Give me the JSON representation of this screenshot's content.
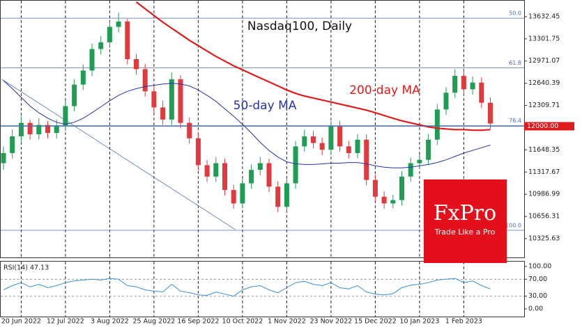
{
  "chart_data": [
    {
      "type": "candlestick",
      "title": "Nasdaq100, Daily",
      "categories": [
        null,
        null,
        "20 Jun 2022",
        null,
        null,
        null,
        null,
        "12 Jul 2022",
        null,
        null,
        null,
        null,
        "3 Aug 2022",
        null,
        null,
        null,
        null,
        "25 Aug 2022",
        null,
        null,
        null,
        null,
        "16 Sep 2022",
        null,
        null,
        null,
        null,
        "10 Oct 2022",
        null,
        null,
        null,
        null,
        "1 Nov 2022",
        null,
        null,
        null,
        null,
        "23 Nov 2022",
        null,
        null,
        null,
        null,
        "15 Dec 2022",
        null,
        null,
        null,
        null,
        "10 Jan 2023",
        null,
        null,
        null,
        null,
        "1 Feb 2023",
        null,
        null,
        null
      ],
      "open": [
        11450,
        11600,
        11850,
        12050,
        11880,
        12020,
        11900,
        12010,
        12300,
        12620,
        12830,
        13150,
        13250,
        13480,
        13560,
        13000,
        12850,
        12520,
        12280,
        12100,
        12700,
        12050,
        11820,
        11420,
        11250,
        11450,
        11050,
        10850,
        11150,
        11350,
        11450,
        11100,
        10800,
        11150,
        11700,
        11850,
        11750,
        11650,
        12000,
        11700,
        11600,
        11800,
        11200,
        10950,
        10850,
        10900,
        11250,
        11450,
        11500,
        11800,
        12250,
        12500,
        12750,
        12550,
        12650,
        12350
      ],
      "close": [
        11600,
        11850,
        12050,
        11880,
        12020,
        11900,
        12010,
        12300,
        12620,
        12830,
        13150,
        13250,
        13480,
        13560,
        13000,
        12850,
        12520,
        12280,
        12100,
        12700,
        12050,
        11820,
        11420,
        11250,
        11450,
        11050,
        10850,
        11150,
        11350,
        11450,
        11100,
        10800,
        11150,
        11700,
        11850,
        11750,
        11650,
        12000,
        11700,
        11600,
        11800,
        11200,
        10950,
        10850,
        10900,
        11250,
        11450,
        11500,
        11800,
        12250,
        12500,
        12750,
        12550,
        12650,
        12350,
        12040
      ],
      "high": [
        11700,
        11950,
        12150,
        12100,
        12120,
        12080,
        12100,
        12380,
        12700,
        12920,
        13230,
        13340,
        13560,
        13690,
        13600,
        13080,
        12930,
        12600,
        12380,
        12800,
        12760,
        12130,
        11900,
        11500,
        11540,
        11520,
        11130,
        11230,
        11430,
        11540,
        11520,
        11180,
        11230,
        11780,
        11950,
        11930,
        11830,
        12080,
        12080,
        11780,
        11880,
        11880,
        11280,
        11030,
        10980,
        11330,
        11530,
        11580,
        11880,
        12330,
        12580,
        12850,
        12830,
        12740,
        12730,
        12430
      ],
      "low": [
        11350,
        11520,
        11770,
        11800,
        11800,
        11820,
        11820,
        11930,
        12220,
        12540,
        12750,
        13070,
        13170,
        13400,
        12920,
        12770,
        12440,
        12200,
        12020,
        12020,
        11970,
        11740,
        11340,
        11170,
        11170,
        10970,
        10770,
        10780,
        11070,
        11270,
        11020,
        10720,
        10720,
        11070,
        11620,
        11670,
        11570,
        11570,
        11620,
        11520,
        11520,
        11120,
        10870,
        10770,
        10780,
        10820,
        11170,
        11370,
        11420,
        11720,
        12170,
        12420,
        12470,
        12470,
        12270,
        11960
      ],
      "up_color": "#1f9d55",
      "down_color": "#e0393e",
      "ylim": [
        10046,
        13870
      ],
      "yticks": [
        13632.45,
        13301.75,
        12971.07,
        12640.39,
        12309.71,
        11648.35,
        11317.67,
        10986.99,
        10656.31,
        10325.63
      ],
      "series": [
        {
          "name": "50-day MA",
          "color": "#2432a8",
          "values": [
            12680,
            12560,
            12430,
            12300,
            12200,
            12120,
            12060,
            12030,
            12060,
            12120,
            12200,
            12290,
            12380,
            12460,
            12520,
            12560,
            12590,
            12610,
            12630,
            12640,
            12630,
            12600,
            12540,
            12460,
            12370,
            12260,
            12150,
            12030,
            11900,
            11760,
            11640,
            11540,
            11470,
            11440,
            11430,
            11430,
            11440,
            11450,
            11450,
            11460,
            11460,
            11440,
            11410,
            11390,
            11380,
            11380,
            11390,
            11410,
            11430,
            11460,
            11500,
            11550,
            11600,
            11640,
            11680,
            11720
          ]
        },
        {
          "name": "200-day MA",
          "color": "#e01b1b",
          "values": [
            null,
            null,
            null,
            null,
            null,
            null,
            null,
            null,
            null,
            null,
            null,
            null,
            null,
            null,
            null,
            13850,
            13750,
            13650,
            13550,
            13460,
            13370,
            13280,
            13200,
            13120,
            13040,
            12970,
            12900,
            12840,
            12780,
            12720,
            12660,
            12600,
            12540,
            12490,
            12450,
            12420,
            12390,
            12360,
            12330,
            12300,
            12270,
            12240,
            12200,
            12160,
            12120,
            12080,
            12050,
            12020,
            11990,
            11970,
            11960,
            11950,
            11950,
            11940,
            11940,
            11950
          ]
        }
      ],
      "fib_levels": [
        {
          "level": "50.0",
          "price": 13610
        },
        {
          "level": "61.8",
          "price": 12870
        },
        {
          "level": "76.4",
          "price": 12010
        },
        {
          "level": "100.0",
          "price": 10450
        }
      ],
      "level": {
        "label": "12000.00",
        "price": 12000,
        "color": "#e01b1b"
      },
      "trendline": {
        "from": [
          -0.2,
          12700
        ],
        "to": [
          26.2,
          10460
        ],
        "color": "#4a6fb5"
      },
      "grid": true
    },
    {
      "type": "line",
      "title": "RSI(14) 47.13",
      "color": "#3a8fd6",
      "values": [
        45,
        55,
        62,
        52,
        58,
        50,
        55,
        62,
        66,
        68,
        70,
        68,
        72,
        70,
        55,
        52,
        45,
        42,
        40,
        58,
        42,
        38,
        33,
        32,
        40,
        35,
        30,
        45,
        52,
        55,
        45,
        38,
        50,
        62,
        65,
        58,
        55,
        62,
        50,
        47,
        55,
        40,
        35,
        33,
        36,
        50,
        56,
        58,
        62,
        68,
        70,
        72,
        62,
        66,
        55,
        47.13
      ],
      "ylim": [
        -18,
        111.5
      ],
      "yticks": [
        {
          "value": 100,
          "label": "100.00"
        },
        {
          "value": 70,
          "label": "70.00"
        },
        {
          "value": 30,
          "label": "30.00"
        },
        {
          "value": 0,
          "label": "0.00"
        }
      ],
      "dashed_levels": [
        70,
        30
      ]
    }
  ],
  "logo": {
    "name": "FxPro",
    "tagline": "Trade Like a Pro"
  }
}
